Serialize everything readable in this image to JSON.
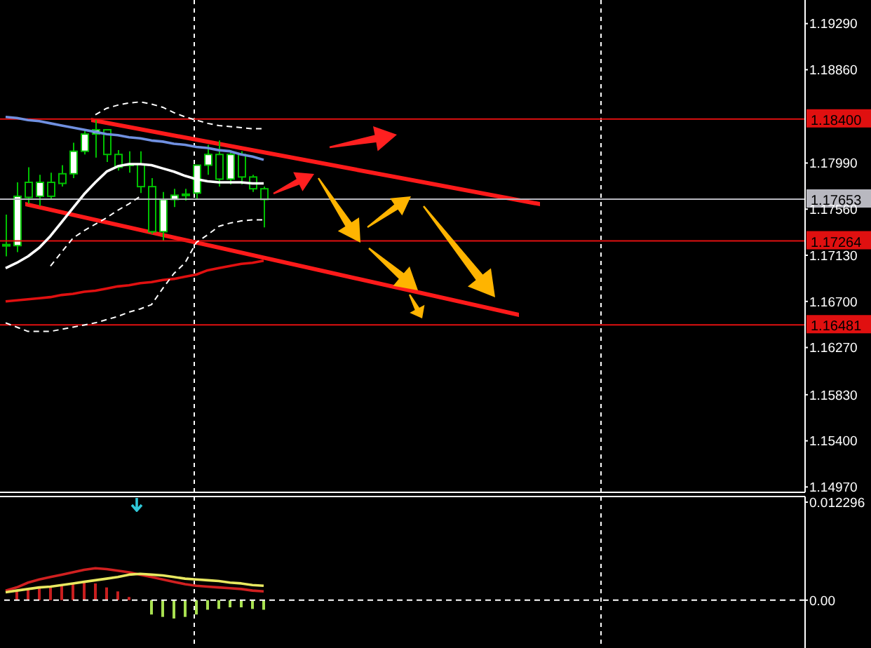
{
  "chart_data": [
    {
      "type": "candlestick",
      "color": "#00c000",
      "categories": [
        null,
        null,
        null,
        null,
        null,
        null,
        null,
        null,
        null,
        null,
        null,
        null,
        null,
        null,
        null,
        null,
        null,
        null,
        null,
        null,
        null,
        null,
        null,
        null,
        null,
        null,
        null,
        null,
        null,
        null,
        null,
        null,
        null,
        null,
        null,
        null,
        null,
        null,
        null,
        null,
        null,
        null,
        null,
        null,
        null,
        null,
        null,
        null,
        null,
        null,
        null,
        null,
        null,
        null,
        null,
        null,
        null,
        null,
        null,
        null,
        null,
        null,
        null,
        null,
        null,
        null,
        null,
        null,
        null,
        null,
        null,
        null
      ],
      "ohlc": [
        [
          1.1723,
          1.1751,
          1.1712,
          1.1722
        ],
        [
          1.1722,
          1.1781,
          1.1716,
          1.1768
        ],
        [
          1.1781,
          1.1795,
          1.1761,
          1.1767
        ],
        [
          1.1768,
          1.1788,
          1.1759,
          1.1781
        ],
        [
          1.1781,
          1.179,
          1.1765,
          1.1768
        ],
        [
          1.1789,
          1.1797,
          1.1777,
          1.178
        ],
        [
          1.1789,
          1.1818,
          1.1785,
          1.181
        ],
        [
          1.181,
          1.1829,
          1.1807,
          1.1826
        ],
        [
          1.1826,
          1.1839,
          1.1804,
          1.183
        ],
        [
          1.183,
          1.183,
          1.18,
          1.1807
        ],
        [
          1.1807,
          1.1811,
          1.1792,
          1.1795
        ],
        [
          1.1798,
          1.181,
          1.179,
          1.1797
        ],
        [
          1.1798,
          1.181,
          1.1771,
          1.1777
        ],
        [
          1.1777,
          1.1785,
          1.1733,
          1.1735
        ],
        [
          1.1735,
          1.1772,
          1.1726,
          1.1765
        ],
        [
          1.1765,
          1.1775,
          1.1758,
          1.1769
        ],
        [
          1.1769,
          1.1775,
          1.1764,
          1.177
        ],
        [
          1.1771,
          1.1797,
          1.1765,
          1.1797
        ],
        [
          1.1797,
          1.1816,
          1.1788,
          1.1807
        ],
        [
          1.1807,
          1.182,
          1.1777,
          1.1784
        ],
        [
          1.1784,
          1.1811,
          1.1779,
          1.1807
        ],
        [
          1.1807,
          1.181,
          1.1779,
          1.1786
        ],
        [
          1.1786,
          1.1788,
          1.1772,
          1.1775
        ],
        [
          1.1775,
          1.1777,
          1.1739,
          1.1765
        ],
        null,
        null,
        null,
        null,
        null,
        null,
        null,
        null,
        null,
        null,
        null,
        null,
        null,
        null,
        null,
        null,
        null,
        null,
        null,
        null,
        null,
        null,
        null,
        null,
        null,
        null,
        null,
        null,
        null,
        null,
        null,
        null,
        null,
        null,
        null,
        null,
        null,
        null,
        null,
        null,
        null,
        null,
        null,
        null,
        null,
        null,
        null,
        null
      ],
      "series": [
        {
          "type": "line",
          "color": "#7090e0",
          "values": [
            1.1842,
            1.1841,
            1.1839,
            1.1838,
            1.1836,
            1.1834,
            1.1832,
            1.183,
            1.1828,
            1.1826,
            1.1825,
            1.1823,
            1.1822,
            1.182,
            1.1819,
            1.1817,
            1.1816,
            1.1814,
            1.1813,
            1.1811,
            1.181,
            1.1807,
            1.1805,
            1.1802,
            null,
            null,
            null,
            null,
            null,
            null,
            null,
            null,
            null,
            null,
            null,
            null,
            null,
            null,
            null,
            null,
            null,
            null,
            null,
            null,
            null,
            null,
            null,
            null,
            null,
            null,
            null,
            null,
            null,
            null,
            null,
            null,
            null,
            null,
            null,
            null,
            null,
            null,
            null,
            null,
            null,
            null,
            null,
            null,
            null,
            null,
            null,
            null
          ]
        },
        {
          "type": "line",
          "color": "#ffffff",
          "values": [
            1.1701,
            1.1706,
            1.1712,
            1.172,
            1.1731,
            1.1744,
            1.1757,
            1.177,
            1.1781,
            1.1791,
            1.1796,
            1.1798,
            1.1798,
            1.1797,
            1.1794,
            1.1791,
            1.1787,
            1.1784,
            1.1782,
            1.1781,
            1.1781,
            1.1781,
            1.178,
            1.178,
            null,
            null,
            null,
            null,
            null,
            null,
            null,
            null,
            null,
            null,
            null,
            null,
            null,
            null,
            null,
            null,
            null,
            null,
            null,
            null,
            null,
            null,
            null,
            null,
            null,
            null,
            null,
            null,
            null,
            null,
            null,
            null,
            null,
            null,
            null,
            null,
            null,
            null,
            null,
            null,
            null,
            null,
            null,
            null,
            null,
            null,
            null,
            null
          ]
        },
        {
          "type": "line",
          "color": "#e01010",
          "values": [
            1.167,
            1.1671,
            1.1672,
            1.1673,
            1.1674,
            1.1676,
            1.1677,
            1.1679,
            1.168,
            1.1682,
            1.1684,
            1.1685,
            1.1687,
            1.1688,
            1.169,
            1.1691,
            1.1693,
            1.1695,
            1.1699,
            1.1701,
            1.1703,
            1.1705,
            1.1706,
            1.1708,
            null,
            null,
            null,
            null,
            null,
            null,
            null,
            null,
            null,
            null,
            null,
            null,
            null,
            null,
            null,
            null,
            null,
            null,
            null,
            null,
            null,
            null,
            null,
            null,
            null,
            null,
            null,
            null,
            null,
            null,
            null,
            null,
            null,
            null,
            null,
            null,
            null,
            null,
            null,
            null,
            null,
            null,
            null,
            null,
            null,
            null,
            null,
            null
          ]
        },
        {
          "type": "line",
          "color": "#ffffff",
          "line_style": "dashed",
          "values": [
            null,
            null,
            null,
            null,
            null,
            null,
            null,
            null,
            1.1844,
            1.185,
            1.1853,
            1.1855,
            1.1856,
            1.1854,
            1.1851,
            1.1846,
            1.1842,
            1.1839,
            1.1836,
            1.1834,
            1.1833,
            1.1832,
            1.1831,
            1.1831,
            null,
            null,
            null,
            null,
            null,
            null,
            null,
            null,
            null,
            null,
            null,
            null,
            null,
            null,
            null,
            null,
            null,
            null,
            null,
            null,
            null,
            null,
            null,
            null,
            null,
            null,
            null,
            null,
            null,
            null,
            null,
            null,
            null,
            null,
            null,
            null,
            null,
            null,
            null,
            null,
            null,
            null,
            null,
            null,
            null,
            null,
            null,
            null
          ]
        },
        {
          "type": "line",
          "color": "#ffffff",
          "line_style": "dashed",
          "values": [
            1.165,
            1.1646,
            1.1642,
            1.1642,
            1.1642,
            1.1644,
            1.1646,
            1.1648,
            1.165,
            1.1653,
            1.1656,
            1.166,
            1.1663,
            1.1667,
            1.1682,
            1.1696,
            1.1706,
            1.1725,
            1.1732,
            1.174,
            1.1743,
            1.1745,
            1.1746,
            1.1746,
            null,
            null,
            null,
            null,
            null,
            null,
            null,
            null,
            null,
            null,
            null,
            null,
            null,
            null,
            null,
            null,
            null,
            null,
            null,
            null,
            null,
            null,
            null,
            null,
            null,
            null,
            null,
            null,
            null,
            null,
            null,
            null,
            null,
            null,
            null,
            null,
            null,
            null,
            null,
            null,
            null,
            null,
            null,
            null,
            null,
            null,
            null,
            null
          ]
        },
        {
          "type": "line",
          "color": "#ffffff",
          "line_style": "dashed",
          "values": [
            null,
            null,
            null,
            null,
            1.1703,
            1.1716,
            1.1729,
            1.1736,
            1.1742,
            1.1748,
            1.1755,
            1.1761,
            1.1768,
            null,
            null,
            null,
            null,
            null,
            null,
            null,
            null,
            null,
            null,
            null,
            null,
            null,
            null,
            null,
            null,
            null,
            null,
            null,
            null,
            null,
            null,
            null,
            null,
            null,
            null,
            null,
            null,
            null,
            null,
            null,
            null,
            null,
            null,
            null,
            null,
            null,
            null,
            null,
            null,
            null,
            null,
            null,
            null,
            null,
            null,
            null,
            null,
            null,
            null,
            null,
            null,
            null,
            null,
            null,
            null,
            null,
            null,
            null
          ]
        }
      ],
      "ref_lines": [
        {
          "axis": "y",
          "value": 1.184,
          "label": "1.18400",
          "color": "#e01010"
        },
        {
          "axis": "y",
          "value": 1.17653,
          "label": "1.17653",
          "color": "#b8b8c0"
        },
        {
          "axis": "y",
          "value": 1.17264,
          "label": "1.17264",
          "color": "#e01010"
        },
        {
          "axis": "y",
          "value": 1.16481,
          "label": "1.16481",
          "color": "#e01010"
        }
      ],
      "ylim": [
        1.1492,
        1.1951
      ],
      "yticks": [
        {
          "value": 1.1929,
          "label": "1.19290"
        },
        {
          "value": 1.1886,
          "label": "1.18860"
        },
        {
          "value": 1.1799,
          "label": "1.17990"
        },
        {
          "value": 1.1756,
          "label": "1.17560"
        },
        {
          "value": 1.1713,
          "label": "1.17130"
        },
        {
          "value": 1.167,
          "label": "1.16700"
        },
        {
          "value": 1.1627,
          "label": "1.16270"
        },
        {
          "value": 1.1583,
          "label": "1.15830"
        },
        {
          "value": 1.154,
          "label": "1.15400"
        },
        {
          "value": 1.1497,
          "label": "1.14970"
        }
      ],
      "tick_labels": "y"
    },
    {
      "type": "bar",
      "categories": [
        null,
        null,
        null,
        null,
        null,
        null,
        null,
        null,
        null,
        null,
        null,
        null,
        null,
        null,
        null,
        null,
        null,
        null,
        null,
        null,
        null,
        null,
        null,
        null,
        null,
        null,
        null,
        null,
        null,
        null,
        null,
        null,
        null,
        null,
        null,
        null,
        null,
        null,
        null,
        null,
        null,
        null,
        null,
        null,
        null,
        null,
        null,
        null,
        null,
        null,
        null,
        null,
        null,
        null,
        null,
        null,
        null,
        null,
        null,
        null,
        null,
        null,
        null,
        null,
        null,
        null,
        null,
        null,
        null,
        null,
        null,
        null
      ],
      "series": [
        {
          "type": "bar",
          "color": "#c81e1e",
          "values": [
            null,
            0.0011,
            0.0014,
            0.0016,
            0.0018,
            0.0019,
            0.0021,
            0.0023,
            0.0021,
            0.0016,
            0.0011,
            0.0004,
            null,
            null,
            null,
            null,
            null,
            null,
            null,
            null,
            null,
            null,
            null,
            null,
            null,
            null,
            null,
            null,
            null,
            null,
            null,
            null,
            null,
            null,
            null,
            null,
            null,
            null,
            null,
            null,
            null,
            null,
            null,
            null,
            null,
            null,
            null,
            null,
            null,
            null,
            null,
            null,
            null,
            null,
            null,
            null,
            null,
            null,
            null,
            null,
            null,
            null,
            null,
            null,
            null,
            null,
            null,
            null,
            null,
            null,
            null,
            null
          ]
        },
        {
          "type": "bar",
          "color": "#a8e050",
          "values": [
            null,
            null,
            null,
            null,
            null,
            null,
            null,
            null,
            null,
            null,
            null,
            null,
            null,
            -0.0018,
            -0.0021,
            -0.0023,
            -0.0021,
            -0.0018,
            -0.0012,
            -0.0011,
            -0.0009,
            -0.0009,
            -0.0011,
            -0.0012,
            null,
            null,
            null,
            null,
            null,
            null,
            null,
            null,
            null,
            null,
            null,
            null,
            null,
            null,
            null,
            null,
            null,
            null,
            null,
            null,
            null,
            null,
            null,
            null,
            null,
            null,
            null,
            null,
            null,
            null,
            null,
            null,
            null,
            null,
            null,
            null,
            null,
            null,
            null,
            null,
            null,
            null,
            null,
            null,
            null,
            null,
            null,
            null
          ]
        },
        {
          "type": "line",
          "color": "#d02020",
          "values": [
            0.0012,
            0.0016,
            0.0022,
            0.0026,
            0.0029,
            0.0032,
            0.0035,
            0.0038,
            0.004,
            0.0039,
            0.0037,
            0.0035,
            0.0032,
            0.0029,
            0.0026,
            0.0023,
            0.002,
            0.0018,
            0.0017,
            0.0016,
            0.0015,
            0.0014,
            0.0012,
            0.0011,
            null,
            null,
            null,
            null,
            null,
            null,
            null,
            null,
            null,
            null,
            null,
            null,
            null,
            null,
            null,
            null,
            null,
            null,
            null,
            null,
            null,
            null,
            null,
            null,
            null,
            null,
            null,
            null,
            null,
            null,
            null,
            null,
            null,
            null,
            null,
            null,
            null,
            null,
            null,
            null,
            null,
            null,
            null,
            null,
            null,
            null,
            null,
            null
          ]
        },
        {
          "type": "line",
          "color": "#e8e860",
          "values": [
            0.001,
            0.0012,
            0.0014,
            0.0016,
            0.0017,
            0.0019,
            0.0021,
            0.0023,
            0.0025,
            0.0027,
            0.0029,
            0.0032,
            0.0033,
            0.0032,
            0.0031,
            0.0029,
            0.0027,
            0.0026,
            0.0025,
            0.0024,
            0.0022,
            0.0021,
            0.0019,
            0.0018,
            null,
            null,
            null,
            null,
            null,
            null,
            null,
            null,
            null,
            null,
            null,
            null,
            null,
            null,
            null,
            null,
            null,
            null,
            null,
            null,
            null,
            null,
            null,
            null,
            null,
            null,
            null,
            null,
            null,
            null,
            null,
            null,
            null,
            null,
            null,
            null,
            null,
            null,
            null,
            null,
            null,
            null,
            null,
            null,
            null,
            null,
            null,
            null
          ]
        }
      ],
      "stacked": true,
      "ref_lines": [
        {
          "axis": "y",
          "value": 0,
          "color": "#ffffff",
          "line_style": "dashed"
        }
      ],
      "ylim": [
        -0.006,
        0.013
      ],
      "yticks": [
        {
          "value": 0.012296,
          "label": "0.012296"
        },
        {
          "value": 0,
          "label": "0.00"
        }
      ],
      "tick_labels": "y"
    }
  ]
}
